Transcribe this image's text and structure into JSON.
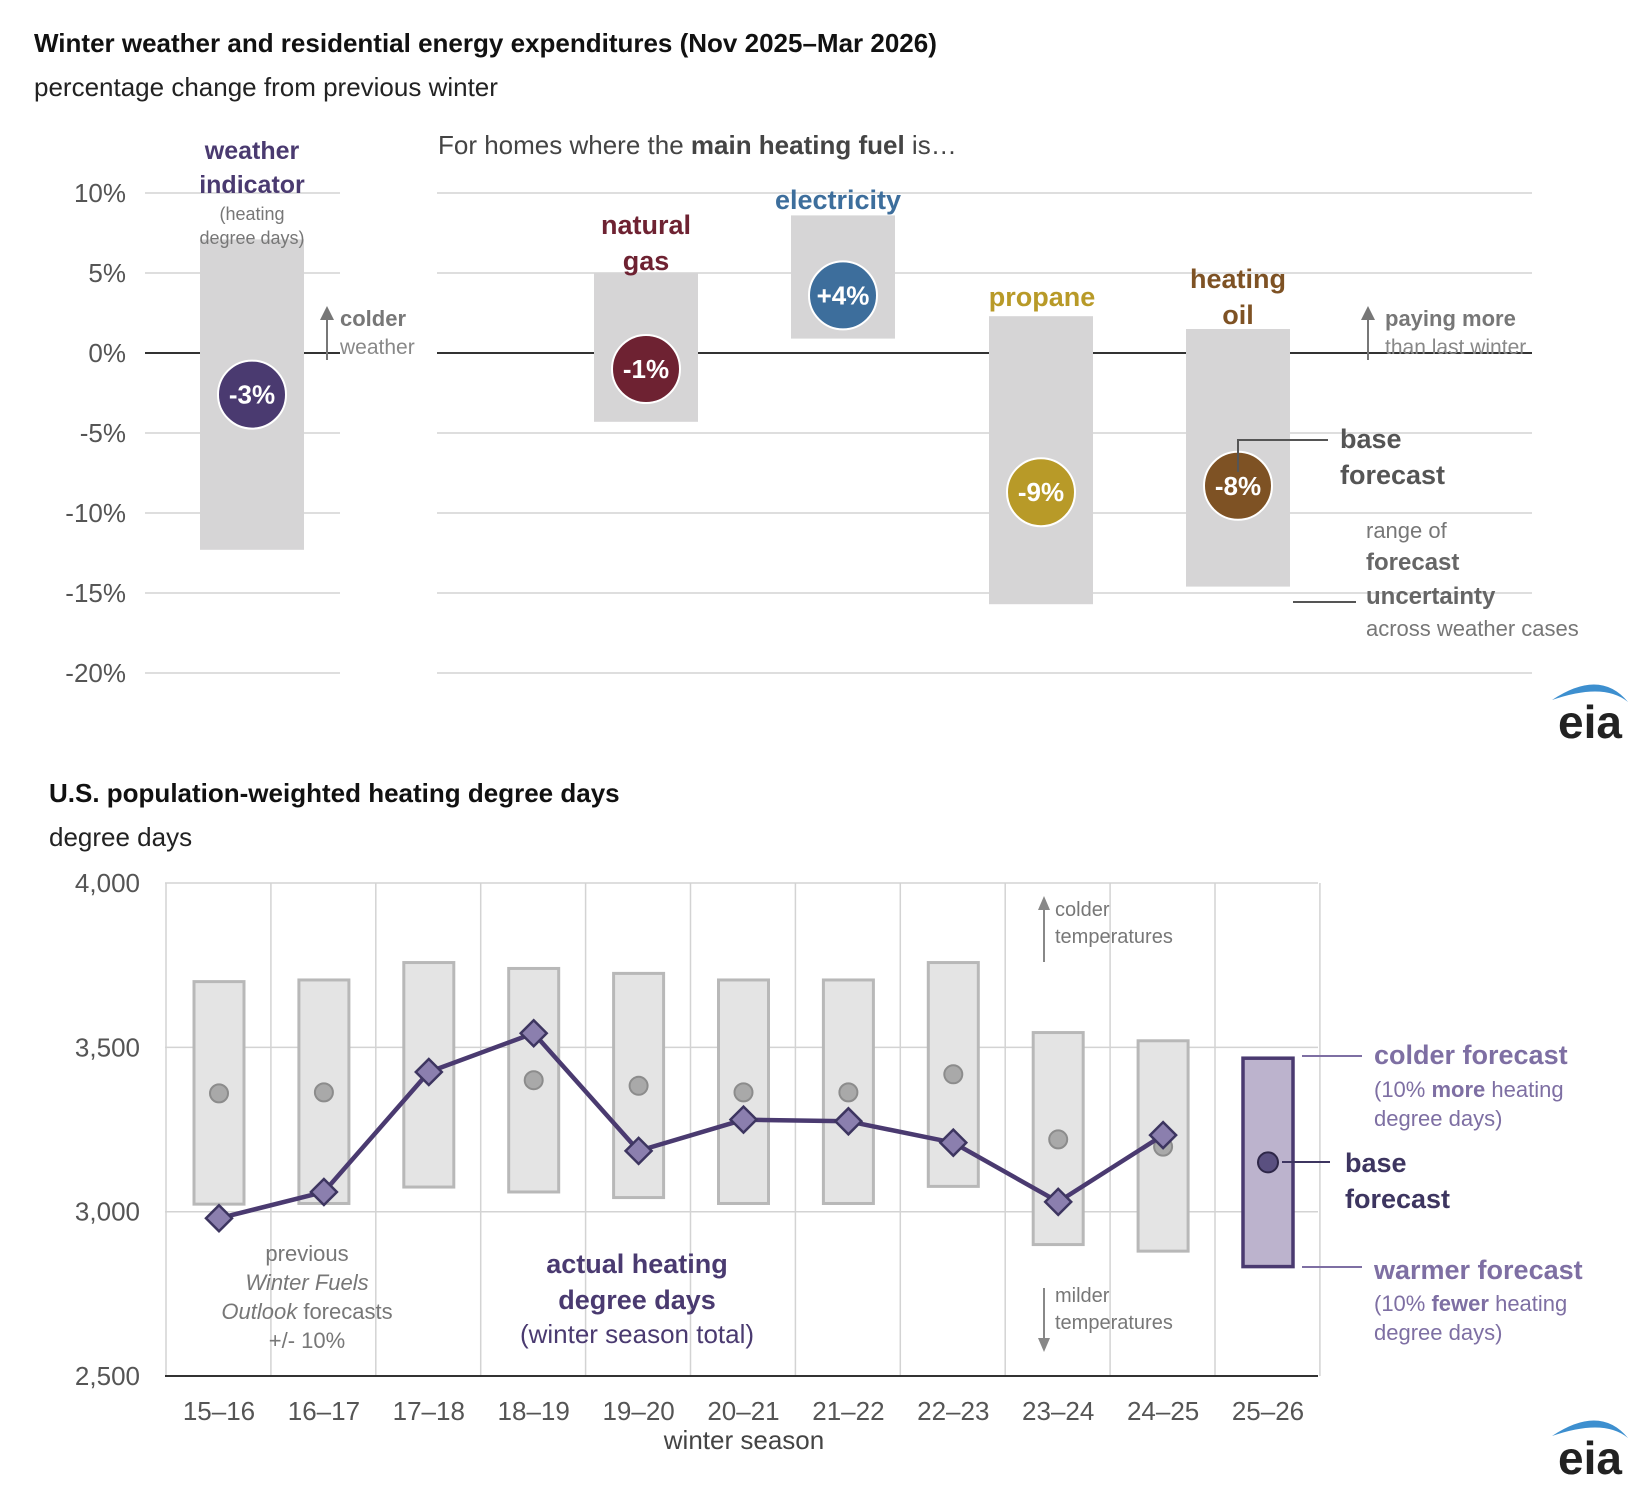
{
  "top": {
    "title": "Winter weather and residential energy expenditures (Nov 2025–Mar 2026)",
    "subtitle": "percentage change from previous winter",
    "fuel_intro": {
      "pre": "For homes where the ",
      "bold": "main heating fuel",
      "post": " is…"
    },
    "weather_label": {
      "line1": "weather",
      "line2": "indicator",
      "sub1": "(heating",
      "sub2": "degree days)"
    },
    "colder_note": {
      "bold": "colder",
      "text": "weather"
    },
    "paying_note": {
      "bold": "paying more",
      "text": "than last winter"
    },
    "base_note": {
      "line1": "base",
      "line2": "forecast"
    },
    "range_note": {
      "line1": "range of",
      "line2": "forecast",
      "line3": "uncertainty",
      "line4": "across weather cases"
    }
  },
  "bottom": {
    "title": "U.S. population-weighted heating degree days",
    "subtitle": "degree days",
    "xlabel": "winter season",
    "prev_note": {
      "l1": "previous",
      "l2": "Winter Fuels",
      "l3a": "Outlook",
      "l3b": " forecasts",
      "l4": "+/- 10%"
    },
    "actual_note": {
      "l1": "actual heating",
      "l2": "degree days",
      "l3": "(winter season total)"
    },
    "colder_temps": {
      "l1": "colder",
      "l2": "temperatures"
    },
    "milder_temps": {
      "l1": "milder",
      "l2": "temperatures"
    },
    "colder_forecast": {
      "title": "colder forecast",
      "l1a": "(10% ",
      "l1b": "more",
      "l1c": " heating",
      "l2": "degree days)"
    },
    "base_forecast": {
      "l1": "base",
      "l2": "forecast"
    },
    "warmer_forecast": {
      "title": "warmer forecast",
      "l1a": "(10% ",
      "l1b": "fewer",
      "l1c": " heating",
      "l2": "degree days)"
    }
  },
  "logo": {
    "text": "eia"
  },
  "colors": {
    "weather": "#4a3a70",
    "natural_gas": "#6e2232",
    "electricity": "#3d6e9c",
    "propane": "#b89a28",
    "heating_oil": "#7e5224",
    "range": "#d6d5d6",
    "hdd_line": "#4a3a70",
    "forecast_box": "#bcb3cd"
  },
  "chart_data": [
    {
      "type": "range-bar",
      "title": "Winter weather and residential energy expenditures (Nov 2025–Mar 2026)",
      "ylabel": "percentage change from previous winter",
      "ylim": [
        -20,
        10
      ],
      "yticks": [
        10,
        5,
        0,
        -5,
        -10,
        -15,
        -20
      ],
      "ytick_labels": [
        "10%",
        "5%",
        "0%",
        "-5%",
        "-10%",
        "-15%",
        "-20%"
      ],
      "series": [
        {
          "key": "weather",
          "name": "weather indicator",
          "low": -12.3,
          "high": 7.1,
          "base": -2.6,
          "label": "-3%"
        },
        {
          "key": "natural_gas",
          "name": "natural gas",
          "low": -4.3,
          "high": 5.0,
          "base": -1.0,
          "label": "-1%"
        },
        {
          "key": "electricity",
          "name": "electricity",
          "low": 0.9,
          "high": 8.6,
          "base": 3.6,
          "label": "+4%"
        },
        {
          "key": "propane",
          "name": "propane",
          "low": -15.7,
          "high": 2.3,
          "base": -8.7,
          "label": "-9%"
        },
        {
          "key": "heating_oil",
          "name": "heating oil",
          "low": -14.6,
          "high": 1.5,
          "base": -8.3,
          "label": "-8%"
        }
      ]
    },
    {
      "type": "line",
      "title": "U.S. population-weighted heating degree days",
      "ylabel": "degree days",
      "xlabel": "winter season",
      "ylim": [
        2500,
        4000
      ],
      "yticks": [
        4000,
        3500,
        3000,
        2500
      ],
      "ytick_labels": [
        "4,000",
        "3,500",
        "3,000",
        "2,500"
      ],
      "categories": [
        "15–16",
        "16–17",
        "17–18",
        "18–19",
        "19–20",
        "20–21",
        "21–22",
        "22–23",
        "23–24",
        "24–25",
        "25–26"
      ],
      "forecast_high": [
        3700,
        3705,
        3758,
        3740,
        3725,
        3705,
        3705,
        3758,
        3545,
        3520,
        3467
      ],
      "forecast_low": [
        3023,
        3025,
        3075,
        3060,
        3043,
        3025,
        3025,
        3077,
        2900,
        2880,
        2833
      ],
      "forecast_base": [
        3360,
        3363,
        null,
        3400,
        3383,
        3363,
        3363,
        3418,
        3220,
        3198,
        3150
      ],
      "actual": [
        2980,
        3060,
        3425,
        3543,
        3185,
        3280,
        3275,
        3210,
        3030,
        3233,
        null
      ]
    }
  ]
}
